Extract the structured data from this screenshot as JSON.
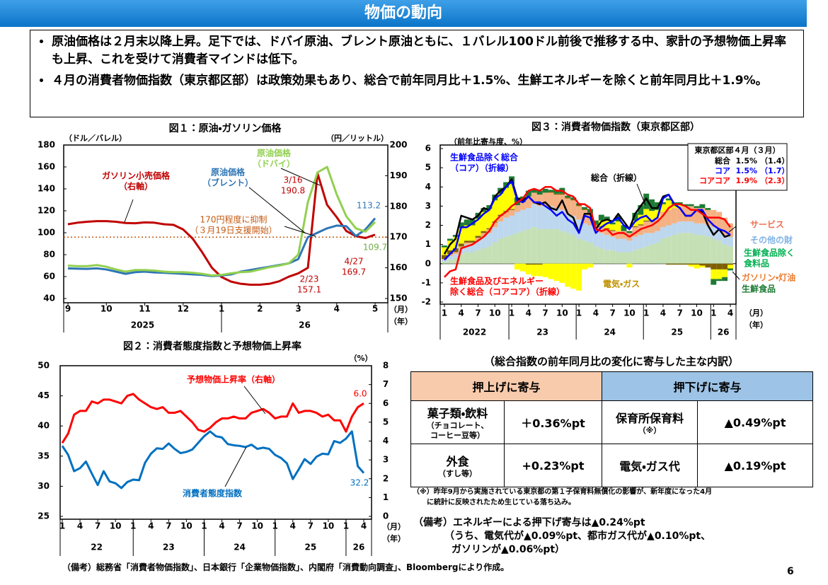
{
  "title": "物価の動向",
  "bullets": [
    "原油価格は２月末以降上昇。足下では、ドバイ原油、ブレント原油ともに、１バレル100ドル前後で推移する中、家計の予想物価上昇率も上昇、これを受けて消費者マインドは低下。",
    "４月の消費者物価指数（東京都区部）は政策効果もあり、総合で前年同月比＋1.5%、生鮮エネルギーを除くと前年同月比＋1.9%。"
  ],
  "chart_data": [
    {
      "type": "line",
      "title": "図１：原油・ガソリン価格",
      "y_unit": "（ドル／バレル）",
      "y2_unit": "（円／リットル）",
      "x_unit": "（月）",
      "x_group_unit": "（年）",
      "categories": [
        "9",
        null,
        null,
        null,
        "10",
        null,
        null,
        null,
        "11",
        null,
        null,
        null,
        "12",
        null,
        null,
        null,
        "1",
        null,
        null,
        null,
        "2",
        null,
        null,
        null,
        "3",
        null,
        null,
        null,
        "4",
        null,
        null,
        null,
        "5"
      ],
      "x_groups": [
        "2025",
        "26"
      ],
      "ylim": [
        40,
        180
      ],
      "yticks": [
        40,
        60,
        80,
        100,
        120,
        140,
        160,
        180
      ],
      "y2lim": [
        150,
        200
      ],
      "y2ticks": [
        150,
        160,
        170,
        180,
        190,
        200
      ],
      "reference_line": {
        "axis": "y2",
        "value": 170,
        "color": "#c55a11"
      },
      "series": [
        {
          "name": "ガソリン小売価格\n（右軸）",
          "axis": "y2",
          "color": "#c00000",
          "values": [
            174.2,
            174.7,
            175.0,
            175.2,
            175.2,
            175.0,
            174.6,
            174.5,
            174.8,
            174.7,
            174.2,
            174.0,
            172.5,
            169.5,
            165.0,
            160.0,
            157.0,
            155.5,
            154.8,
            154.5,
            154.5,
            154.8,
            155.6,
            157.1,
            158.2,
            160.0,
            190.8,
            180.5,
            176.5,
            172.0,
            170.3,
            169.7,
            170.8
          ]
        },
        {
          "name": "原油価格\n（ブレント）",
          "color": "#2e75b6",
          "values": [
            67.5,
            67.2,
            67.0,
            67.5,
            66.5,
            64.5,
            62.5,
            64.0,
            64.5,
            63.8,
            63.5,
            63.0,
            62.5,
            62.0,
            61.5,
            60.5,
            61.0,
            62.0,
            64.5,
            66.0,
            67.5,
            69.0,
            70.5,
            72.0,
            76.0,
            96.0,
            100.0,
            104.0,
            106.5,
            106.0,
            97.0,
            103.0,
            113.2
          ]
        },
        {
          "name": "原油価格\n（ドバイ）",
          "color": "#92d050",
          "values": [
            70.0,
            69.5,
            69.5,
            70.5,
            69.0,
            66.5,
            64.5,
            66.0,
            66.0,
            65.5,
            64.5,
            64.0,
            64.0,
            63.5,
            62.5,
            61.0,
            61.5,
            63.0,
            64.0,
            64.5,
            66.5,
            68.5,
            70.0,
            72.0,
            80.0,
            128.0,
            155.0,
            160.0,
            135.0,
            115.0,
            104.0,
            101.0,
            109.7
          ]
        }
      ],
      "annotations": [
        {
          "text": "3/16\n190.8",
          "color": "#c00000"
        },
        {
          "text": "113.2",
          "color": "#2e75b6"
        },
        {
          "text": "170円程度に抑制\n（３月19日支援開始）",
          "color": "#c55a11"
        },
        {
          "text": "109.7",
          "color": "#70ad47"
        },
        {
          "text": "4/27\n169.7",
          "color": "#c00000"
        },
        {
          "text": "2/23\n157.1",
          "color": "#c00000"
        }
      ]
    },
    {
      "type": "line",
      "title": "図２：消費者態度指数と予想物価上昇率",
      "y2_unit": "（%）",
      "x_unit": "（月）",
      "x_group_unit": "（年）",
      "categories": [
        "1",
        null,
        null,
        "4",
        null,
        null,
        "7",
        null,
        null,
        "10",
        null,
        null,
        "1",
        null,
        null,
        "4",
        null,
        null,
        "7",
        null,
        null,
        "10",
        null,
        null,
        "1",
        null,
        null,
        "4",
        null,
        null,
        "7",
        null,
        null,
        "10",
        null,
        null,
        "1",
        null,
        null,
        "4",
        null,
        null,
        "7",
        null,
        null,
        "10",
        null,
        null,
        "1",
        null,
        null,
        "4"
      ],
      "x_groups": [
        "22",
        "23",
        "24",
        "25",
        "26"
      ],
      "ylim": [
        25,
        50
      ],
      "yticks": [
        25,
        30,
        35,
        40,
        45,
        50
      ],
      "y2lim": [
        0,
        8
      ],
      "y2ticks": [
        0,
        1,
        2,
        3,
        4,
        5,
        6,
        7,
        8
      ],
      "series": [
        {
          "name": "予想物価上昇率（右軸）",
          "axis": "y2",
          "color": "#ff0000",
          "values": [
            3.9,
            4.4,
            5.4,
            5.6,
            5.6,
            6.1,
            6.0,
            6.2,
            6.2,
            6.1,
            6.0,
            6.4,
            6.5,
            6.2,
            6.0,
            5.8,
            5.7,
            5.8,
            5.5,
            5.5,
            5.6,
            5.3,
            5.0,
            4.6,
            4.5,
            4.7,
            5.0,
            5.2,
            5.2,
            5.3,
            5.2,
            5.2,
            5.5,
            5.6,
            5.7,
            5.5,
            5.2,
            5.3,
            5.3,
            6.0,
            5.5,
            5.6,
            5.6,
            5.5,
            5.3,
            5.4,
            5.1,
            5.1,
            4.5,
            5.3,
            5.8,
            6.0
          ]
        },
        {
          "name": "消費者態度指数",
          "color": "#0070c0",
          "values": [
            36.7,
            35.2,
            32.5,
            33.0,
            34.1,
            32.1,
            30.2,
            32.5,
            30.8,
            30.5,
            29.7,
            30.7,
            31.1,
            31.0,
            33.9,
            35.4,
            36.3,
            36.2,
            37.1,
            36.2,
            35.5,
            35.7,
            36.1,
            37.2,
            38.3,
            39.1,
            38.3,
            38.1,
            37.0,
            36.8,
            36.7,
            36.5,
            36.9,
            36.2,
            36.4,
            36.2,
            35.2,
            34.7,
            33.8,
            31.2,
            32.8,
            34.5,
            33.7,
            34.9,
            35.4,
            35.3,
            37.5,
            37.2,
            37.9,
            39.1,
            33.3,
            32.2
          ]
        }
      ],
      "annotations": [
        {
          "text": "6.0",
          "color": "#ff0000"
        },
        {
          "text": "32.2",
          "color": "#0070c0"
        }
      ]
    },
    {
      "type": "combo",
      "title": "図３：消費者物価指数（東京都区部）",
      "y_unit": "（前年比寄与度、%）",
      "x_unit": "（月）",
      "x_group_unit": "（年）",
      "categories": [
        "1",
        null,
        null,
        "4",
        null,
        null,
        "7",
        null,
        null,
        "10",
        null,
        null,
        "1",
        null,
        null,
        "4",
        null,
        null,
        "7",
        null,
        null,
        "10",
        null,
        null,
        "1",
        null,
        null,
        "4",
        null,
        null,
        "7",
        null,
        null,
        "10",
        null,
        null,
        "1",
        null,
        null,
        "4",
        null,
        null,
        "7",
        null,
        null,
        "10",
        null,
        null,
        "1",
        null,
        null,
        "4"
      ],
      "x_groups": [
        "2022",
        "23",
        "24",
        "25",
        "26"
      ],
      "ylim": [
        -2,
        6
      ],
      "yticks": [
        -2,
        -1,
        0,
        1,
        2,
        3,
        4,
        5,
        6
      ],
      "series": [
        {
          "name": "生鮮食品除く\n食料品",
          "type": "bar",
          "color": "#c5e0b4",
          "label_color": "#00b050",
          "values": [
            0.1,
            0.2,
            0.3,
            0.5,
            0.6,
            0.6,
            0.7,
            0.8,
            0.9,
            1.1,
            1.3,
            1.4,
            1.5,
            1.6,
            1.7,
            1.8,
            1.9,
            1.8,
            1.8,
            1.8,
            1.8,
            1.7,
            1.6,
            1.5,
            1.3,
            1.2,
            1.1,
            0.9,
            0.8,
            0.7,
            0.7,
            0.6,
            0.6,
            0.6,
            0.7,
            0.8,
            0.9,
            1.0,
            1.1,
            1.3,
            1.4,
            1.5,
            1.6,
            1.6,
            1.6,
            1.5,
            1.5,
            1.4,
            1.3,
            1.2,
            1.0,
            0.9
          ]
        },
        {
          "name": "その他の財",
          "type": "bar",
          "color": "#bdd7ee",
          "label_color": "#7fb2e5",
          "values": [
            0.1,
            0.2,
            0.2,
            0.3,
            0.4,
            0.4,
            0.5,
            0.6,
            0.7,
            0.8,
            0.9,
            1.0,
            1.0,
            1.1,
            1.1,
            1.1,
            1.2,
            1.2,
            1.2,
            1.2,
            1.1,
            1.1,
            1.0,
            1.0,
            1.0,
            0.9,
            0.9,
            0.8,
            0.8,
            0.8,
            0.7,
            0.7,
            0.7,
            0.6,
            0.7,
            0.7,
            0.7,
            0.6,
            0.6,
            0.6,
            0.6,
            0.6,
            0.6,
            0.6,
            0.6,
            0.6,
            0.6,
            0.6,
            0.6,
            0.6,
            0.5,
            0.5
          ]
        },
        {
          "name": "サービス",
          "type": "bar",
          "color": "#f4b183",
          "label_color": "#f07050",
          "values": [
            0.05,
            0.1,
            0.1,
            0.1,
            0.1,
            0.1,
            0.15,
            0.2,
            0.2,
            0.25,
            0.3,
            0.3,
            0.3,
            0.35,
            0.4,
            0.6,
            0.6,
            0.6,
            0.7,
            0.7,
            0.7,
            0.8,
            0.8,
            0.8,
            0.7,
            0.7,
            0.6,
            0.3,
            0.3,
            0.3,
            0.3,
            0.4,
            0.4,
            0.4,
            0.5,
            0.5,
            0.6,
            0.6,
            0.7,
            0.8,
            0.8,
            0.8,
            0.8,
            0.8,
            0.8,
            0.8,
            0.8,
            0.8,
            0.9,
            0.9,
            0.9,
            0.7
          ]
        },
        {
          "name": "ガソリン・灯油",
          "type": "bar",
          "color": "#7f6000",
          "label_color": "#ed7d31",
          "values": [
            0.2,
            0.2,
            0.2,
            0.15,
            0.1,
            0.1,
            0.1,
            0.1,
            0.05,
            0.05,
            0.05,
            0.05,
            0.05,
            0.0,
            0.0,
            -0.05,
            -0.05,
            -0.05,
            0.0,
            0.05,
            0.05,
            0.05,
            0.05,
            0.05,
            0.05,
            0.05,
            0.05,
            0.05,
            0.05,
            0.05,
            0.05,
            0.0,
            0.0,
            0.0,
            0.05,
            0.05,
            0.05,
            0.05,
            0.0,
            0.0,
            -0.05,
            -0.05,
            -0.05,
            -0.05,
            -0.05,
            -0.05,
            -0.1,
            -0.2,
            -0.3,
            -0.3,
            -0.3,
            -0.06
          ]
        },
        {
          "name": "電気・ガス",
          "type": "bar",
          "color": "#ffff00",
          "label_color": "#bf9000",
          "values": [
            0.4,
            0.5,
            0.6,
            0.8,
            0.8,
            0.8,
            0.9,
            1.0,
            1.0,
            1.1,
            1.1,
            1.2,
            1.3,
            -0.3,
            -0.4,
            -0.5,
            -0.6,
            -0.6,
            -0.7,
            -0.8,
            -0.9,
            -1.0,
            -1.2,
            -1.3,
            -1.4,
            -0.3,
            -0.2,
            0.0,
            0.3,
            0.4,
            0.3,
            0.5,
            0.0,
            -0.2,
            0.3,
            0.5,
            0.6,
            0.5,
            0.4,
            0.4,
            0.5,
            0.2,
            0.1,
            0.0,
            -0.1,
            -0.2,
            -0.1,
            0.0,
            -0.5,
            -0.5,
            -0.4,
            -0.19
          ]
        },
        {
          "name": "生鮮食品",
          "type": "bar",
          "color": "#1e7b34",
          "label_color": "#1e7b34",
          "values": [
            0.1,
            0.1,
            0.1,
            0.3,
            0.3,
            0.3,
            0.3,
            0.2,
            0.2,
            0.3,
            0.3,
            0.3,
            0.4,
            0.4,
            0.3,
            0.3,
            0.2,
            0.2,
            0.2,
            0.1,
            0.2,
            0.3,
            0.1,
            0.1,
            0.1,
            0.1,
            0.2,
            0.2,
            0.3,
            0.2,
            0.1,
            0.3,
            0.3,
            0.1,
            0.4,
            0.5,
            0.8,
            0.6,
            0.4,
            0.1,
            0.1,
            0.1,
            0.1,
            0.1,
            0.1,
            0.1,
            0.2,
            0.1,
            -0.3,
            -0.1,
            -0.2,
            -0.1
          ]
        },
        {
          "name": "総合（折線）",
          "type": "line",
          "color": "#000000",
          "values": [
            0.5,
            1.0,
            1.3,
            2.5,
            2.4,
            2.3,
            2.5,
            2.9,
            2.8,
            3.5,
            3.8,
            4.0,
            4.4,
            3.4,
            3.3,
            3.5,
            3.2,
            3.1,
            3.2,
            2.9,
            2.8,
            3.3,
            2.6,
            2.4,
            1.6,
            2.6,
            2.6,
            1.8,
            2.2,
            2.3,
            2.2,
            2.6,
            2.2,
            1.8,
            2.6,
            3.0,
            3.4,
            2.9,
            2.9,
            3.5,
            3.6,
            3.1,
            2.9,
            2.5,
            2.5,
            2.8,
            2.7,
            2.0,
            1.5,
            1.8,
            1.4,
            1.5
          ]
        },
        {
          "name": "生鮮食品除く総合\n（コア）（折線）",
          "type": "line",
          "color": "#0000ff",
          "values": [
            0.2,
            0.5,
            0.8,
            1.9,
            1.9,
            2.1,
            2.3,
            2.6,
            2.8,
            3.4,
            3.6,
            4.0,
            4.3,
            3.3,
            3.2,
            3.5,
            3.2,
            3.2,
            3.0,
            2.8,
            2.5,
            2.7,
            2.3,
            2.1,
            1.6,
            2.5,
            2.4,
            1.6,
            1.9,
            2.1,
            2.2,
            2.4,
            2.0,
            1.8,
            2.2,
            2.4,
            2.5,
            2.2,
            2.4,
            3.4,
            3.6,
            3.1,
            2.9,
            2.5,
            2.5,
            2.8,
            2.8,
            2.3,
            2.0,
            1.8,
            1.7,
            1.5
          ]
        },
        {
          "name": "生鮮食品及びエネルギー\n除く総合（コアコア）（折線）",
          "type": "line",
          "color": "#ff0000",
          "values": [
            -0.7,
            -0.4,
            -0.3,
            0.8,
            0.9,
            1.0,
            1.2,
            1.4,
            1.7,
            2.2,
            2.5,
            2.7,
            3.0,
            3.2,
            3.4,
            3.8,
            3.9,
            3.8,
            4.0,
            4.0,
            3.8,
            3.8,
            3.6,
            3.5,
            3.1,
            3.1,
            2.9,
            1.8,
            1.7,
            1.8,
            1.5,
            1.6,
            1.6,
            1.4,
            1.6,
            1.8,
            1.9,
            2.0,
            2.2,
            2.5,
            2.9,
            3.1,
            3.1,
            3.0,
            2.8,
            2.8,
            2.6,
            2.4,
            2.4,
            2.4,
            2.3,
            1.9
          ]
        }
      ],
      "summary": {
        "title": "東京都区部４月（３月）",
        "rows": [
          {
            "name": "総合",
            "value": "1.5%",
            "prev": "（1.4）",
            "color": "#000000"
          },
          {
            "name": "コア",
            "value": "1.5%",
            "prev": "（1.7）",
            "color": "#0000ff"
          },
          {
            "name": "コアコア",
            "value": "1.9%",
            "prev": "（2.3）",
            "color": "#ff0000"
          }
        ]
      }
    }
  ],
  "table": {
    "caption": "（総合指数の前年同月比の変化に寄与した主な内訳）",
    "headers": [
      "押上げに寄与",
      "押下げに寄与"
    ],
    "rows": [
      [
        {
          "name": "菓子類・飲料",
          "sub": "（チョコレート、\nコーヒー豆等）"
        },
        "＋0.36%pt",
        {
          "name": "保育所保育料",
          "sub": "（※）"
        },
        "▲0.49%pt"
      ],
      [
        {
          "name": "外食",
          "sub": "（すし等）"
        },
        "+0.23%pt",
        {
          "name": "電気・ガス代"
        },
        "▲0.19%pt"
      ]
    ]
  },
  "table_note": "（※）昨年9月から実施されている東京都の第１子保育料無償化の影響が、新年度になった4月\n　　に統計に反映されたため生じている落ち込み。",
  "remarks": [
    "（備考）エネルギーによる押下げ寄与は▲0.24%pt",
    "（うち、電気代が▲0.09%pt、都市ガス代が▲0.10%pt、",
    "ガソリンが▲0.06%pt）"
  ],
  "source": "（備考）総務省「消費者物価指数」、日本銀行「企業物価指数」、内閣府「消費動向調査」、Bloombergにより作成。",
  "page_number": "6"
}
